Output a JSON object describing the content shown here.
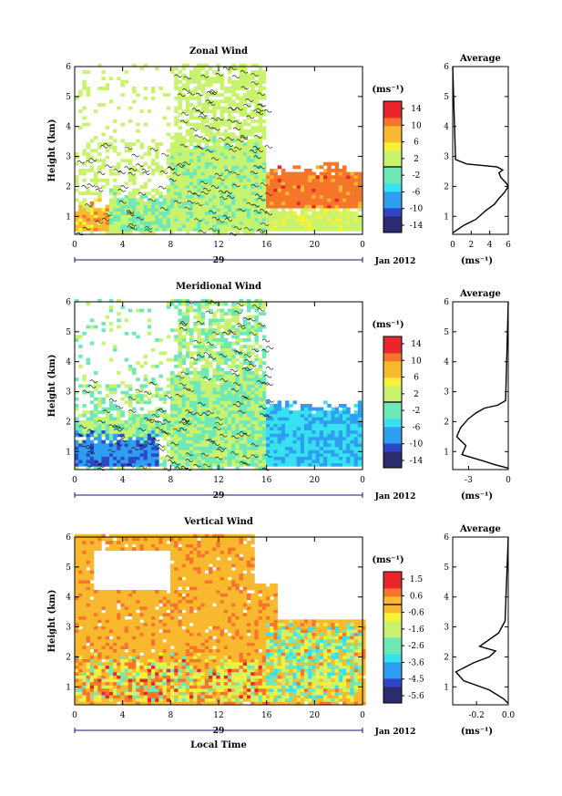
{
  "chart_data": [
    {
      "type": "heatmap",
      "title": "Zonal Wind",
      "xlabel": "",
      "ylabel": "Height (km)",
      "xlim": [
        0,
        24
      ],
      "ylim": [
        0.4,
        6
      ],
      "x_ticks": [
        "0",
        "4",
        "8",
        "12",
        "16",
        "20",
        "0"
      ],
      "y_ticks": [
        "1",
        "2",
        "3",
        "4",
        "5",
        "6"
      ],
      "date_label": "29",
      "month_label": "Jan 2012",
      "colorbar": {
        "unit": "(ms⁻¹)",
        "ticks": [
          "14",
          "10",
          "6",
          "2",
          "-2",
          "-6",
          "-10",
          "-14"
        ],
        "min": -16,
        "max": 16
      },
      "approx_field": {
        "upper_cover_hours": [
          [
            1,
            8.3
          ],
          [
            8.3,
            16
          ]
        ],
        "low_band": [
          {
            "x0": 0,
            "x1": 3,
            "z0": 0.5,
            "z1": 1.4,
            "value": 8
          },
          {
            "x0": 3,
            "x1": 8,
            "z0": 0.5,
            "z1": 1.7,
            "value": 0
          },
          {
            "x0": 8,
            "x1": 16,
            "z0": 0.5,
            "z1": 3.5,
            "value": 1
          },
          {
            "x0": 16,
            "x1": 24,
            "z0": 1.3,
            "z1": 2.6,
            "value": 11
          },
          {
            "x0": 16,
            "x1": 24,
            "z0": 0.5,
            "z1": 1.3,
            "value": 2
          }
        ]
      },
      "average": {
        "title": "Average",
        "xlabel": "(ms⁻¹)",
        "x_ticks": [
          "0",
          "2",
          "4",
          "6"
        ],
        "xlim": [
          0,
          6
        ],
        "profile_x": [
          0,
          1.2,
          2.5,
          3.6,
          4.5,
          5.0,
          5.6,
          6.0,
          5.8,
          5.2,
          5.0,
          5.4,
          4.8,
          1.5,
          0.3,
          0
        ],
        "profile_z": [
          0.45,
          0.7,
          0.9,
          1.2,
          1.4,
          1.6,
          1.8,
          2.0,
          2.1,
          2.3,
          2.45,
          2.55,
          2.65,
          2.75,
          2.9,
          6
        ]
      }
    },
    {
      "type": "heatmap",
      "title": "Meridional Wind",
      "xlabel": "",
      "ylabel": "Height (km)",
      "xlim": [
        0,
        24
      ],
      "ylim": [
        0.4,
        6
      ],
      "x_ticks": [
        "0",
        "4",
        "8",
        "12",
        "16",
        "20",
        "0"
      ],
      "y_ticks": [
        "1",
        "2",
        "3",
        "4",
        "5",
        "6"
      ],
      "date_label": "29",
      "month_label": "Jan 2012",
      "colorbar": {
        "unit": "(ms⁻¹)",
        "ticks": [
          "14",
          "10",
          "6",
          "2",
          "-2",
          "-6",
          "-10",
          "-14"
        ],
        "min": -16,
        "max": 16
      },
      "approx_field": {
        "low_band": [
          {
            "x0": 0,
            "x1": 7,
            "z0": 0.5,
            "z1": 1.5,
            "value": -9
          },
          {
            "x0": 0,
            "x1": 8,
            "z0": 1.5,
            "z1": 2.2,
            "value": 0
          },
          {
            "x0": 8,
            "x1": 16,
            "z0": 0.5,
            "z1": 3.5,
            "value": 0
          },
          {
            "x0": 16,
            "x1": 24,
            "z0": 0.5,
            "z1": 2.5,
            "value": -6
          }
        ]
      },
      "average": {
        "title": "Average",
        "xlabel": "(ms⁻¹)",
        "x_ticks": [
          "-3",
          "0"
        ],
        "xlim": [
          -4.2,
          0
        ],
        "profile_x": [
          0,
          -0.9,
          -2.0,
          -3.5,
          -3.2,
          -3.9,
          -3.6,
          -3.0,
          -2.4,
          -1.8,
          -0.8,
          -0.2,
          0
        ],
        "profile_z": [
          0.45,
          0.55,
          0.7,
          0.9,
          1.2,
          1.5,
          1.8,
          2.1,
          2.3,
          2.45,
          2.55,
          2.7,
          6
        ]
      }
    },
    {
      "type": "heatmap",
      "title": "Vertical Wind",
      "xlabel": "Local Time",
      "ylabel": "Height (km)",
      "xlim": [
        0,
        24
      ],
      "ylim": [
        0.4,
        6
      ],
      "x_ticks": [
        "0",
        "4",
        "8",
        "12",
        "16",
        "20",
        "0"
      ],
      "y_ticks": [
        "1",
        "2",
        "3",
        "4",
        "5",
        "6"
      ],
      "date_label": "29",
      "month_label": "Jan 2012",
      "colorbar": {
        "unit": "(ms⁻¹)",
        "ticks": [
          "1.5",
          "0.6",
          "-0.6",
          "-1.6",
          "-2.6",
          "-3.6",
          "-4.5",
          "-5.6"
        ],
        "min": -6.0,
        "max": 2.0
      },
      "approx_field": {
        "background_value": 0.3,
        "low_band": [
          {
            "x0": 0,
            "x1": 16,
            "z0": 0.5,
            "z1": 1.9,
            "value": -0.5
          },
          {
            "x0": 16,
            "x1": 24,
            "z0": 0.5,
            "z1": 3.0,
            "value": -1.4
          }
        ]
      },
      "average": {
        "title": "Average",
        "xlabel": "(ms⁻¹)",
        "x_ticks": [
          "-0.2",
          "0.0"
        ],
        "xlim": [
          -0.35,
          0
        ],
        "profile_x": [
          0,
          -0.03,
          -0.12,
          -0.28,
          -0.33,
          -0.22,
          -0.12,
          -0.08,
          -0.18,
          -0.06,
          -0.02,
          0
        ],
        "profile_z": [
          0.45,
          0.6,
          0.9,
          1.2,
          1.5,
          1.8,
          2.0,
          2.2,
          2.35,
          2.8,
          3.2,
          6
        ]
      }
    }
  ]
}
